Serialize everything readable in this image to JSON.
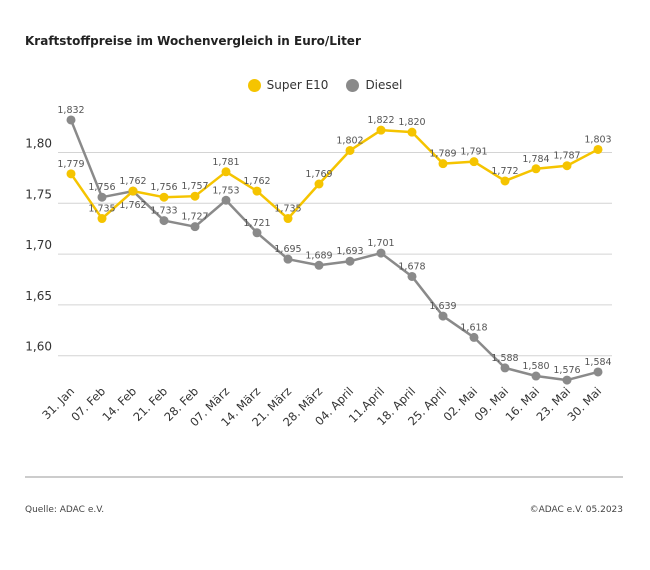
{
  "chart_data": {
    "type": "line",
    "title": "Kraftstoffpreise im Wochenvergleich in Euro/Liter",
    "categories": [
      "31. Jan",
      "07. Feb",
      "14. Feb",
      "21. Feb",
      "28. Feb",
      "07. März",
      "14. März",
      "21. März",
      "28. März",
      "04. April",
      "11.April",
      "18. April",
      "25. April",
      "02. Mai",
      "09. Mai",
      "16. Mai",
      "23. Mai",
      "30. Mai"
    ],
    "series": [
      {
        "name": "Super E10",
        "color": "#f5c400",
        "values": [
          1.779,
          1.735,
          1.762,
          1.756,
          1.757,
          1.781,
          1.762,
          1.735,
          1.769,
          1.802,
          1.822,
          1.82,
          1.789,
          1.791,
          1.772,
          1.784,
          1.787,
          1.803
        ]
      },
      {
        "name": "Diesel",
        "color": "#8a8a8a",
        "values": [
          1.832,
          1.756,
          1.762,
          1.733,
          1.727,
          1.753,
          1.721,
          1.695,
          1.689,
          1.693,
          1.701,
          1.678,
          1.639,
          1.618,
          1.588,
          1.58,
          1.576,
          1.584
        ]
      }
    ],
    "yticks": [
      "1,60",
      "1,65",
      "1,70",
      "1,75",
      "1,80"
    ],
    "ytick_values": [
      1.6,
      1.65,
      1.7,
      1.75,
      1.8
    ],
    "grid": true,
    "legend_position": "top-center",
    "decimal_separator": ","
  },
  "footer": {
    "source": "Quelle: ADAC e.V.",
    "copyright": "©ADAC e.V. 05.2023"
  }
}
